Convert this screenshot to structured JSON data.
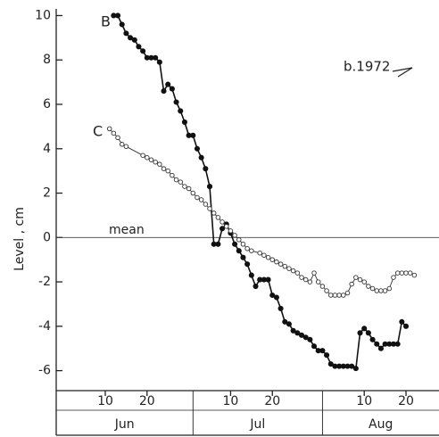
{
  "chart_data": {
    "type": "line",
    "ylabel": "Level , cm",
    "annotations": [
      "B",
      "C",
      "b.1972",
      "mean"
    ],
    "xlim": [
      -1.75,
      89.9
    ],
    "ylim": [
      -6.9,
      10.3
    ],
    "yticks": [
      -6,
      -4,
      -2,
      0,
      2,
      4,
      6,
      8,
      10
    ],
    "xticks": [
      {
        "value": 10,
        "label": "10"
      },
      {
        "value": 20,
        "label": "20"
      },
      {
        "value": 40,
        "label": "10"
      },
      {
        "value": 50,
        "label": "20"
      },
      {
        "value": 72,
        "label": "10"
      },
      {
        "value": 82,
        "label": "20"
      }
    ],
    "months": [
      "Jun",
      "Jul",
      "Aug"
    ],
    "month_bounds": [
      31,
      62
    ],
    "hline": 0,
    "series": [
      {
        "name": "B",
        "color": "#111111",
        "marker": "filled",
        "x": [
          12,
          13,
          14,
          15,
          16,
          17,
          18,
          19,
          20,
          21,
          22,
          23,
          24,
          25,
          26,
          27,
          28,
          29,
          30,
          31,
          32,
          33,
          34,
          35,
          36,
          37,
          38,
          39,
          40,
          41,
          42,
          43,
          44,
          45,
          46,
          47,
          48,
          49,
          50,
          51,
          52,
          53,
          54,
          55,
          56,
          57,
          58,
          59,
          60,
          61,
          62,
          63,
          64,
          65,
          66,
          67,
          68,
          69,
          70,
          71,
          72,
          73,
          74,
          75,
          76,
          77,
          78,
          79,
          80,
          81,
          82
        ],
        "values": [
          10.0,
          10.0,
          9.6,
          9.2,
          9.0,
          8.9,
          8.6,
          8.4,
          8.1,
          8.1,
          8.1,
          7.9,
          6.6,
          6.9,
          6.7,
          6.1,
          5.7,
          5.2,
          4.6,
          4.6,
          4.0,
          3.6,
          3.1,
          2.3,
          -0.3,
          -0.3,
          0.4,
          0.6,
          0.2,
          -0.3,
          -0.6,
          -0.9,
          -1.2,
          -1.7,
          -2.2,
          -1.9,
          -1.9,
          -1.9,
          -2.6,
          -2.7,
          -3.2,
          -3.8,
          -3.9,
          -4.2,
          -4.3,
          -4.4,
          -4.5,
          -4.6,
          -4.9,
          -5.1,
          -5.1,
          -5.3,
          -5.7,
          -5.8,
          -5.8,
          -5.8,
          -5.8,
          -5.8,
          -5.9,
          -4.3,
          -4.1,
          -4.3,
          -4.6,
          -4.8,
          -5.0,
          -4.8,
          -4.8,
          -4.8,
          -4.8,
          -3.8,
          -4.0
        ]
      },
      {
        "name": "C",
        "color": "#333333",
        "marker": "open",
        "x": [
          11,
          12,
          13,
          14,
          15,
          19,
          20,
          21,
          22,
          23,
          24,
          25,
          26,
          27,
          28,
          29,
          30,
          31,
          32,
          33,
          34,
          35,
          36,
          37,
          38,
          39,
          40,
          41,
          42,
          43,
          44,
          45,
          47,
          48,
          49,
          50,
          51,
          52,
          53,
          54,
          55,
          56,
          57,
          58,
          59,
          60,
          61,
          62,
          63,
          64,
          65,
          66,
          67,
          68,
          69,
          70,
          71,
          72,
          73,
          74,
          75,
          76,
          77,
          78,
          79,
          80,
          81,
          82,
          83,
          84
        ],
        "values": [
          4.9,
          4.7,
          4.5,
          4.2,
          4.1,
          3.7,
          3.6,
          3.5,
          3.4,
          3.3,
          3.1,
          3.0,
          2.8,
          2.6,
          2.5,
          2.3,
          2.2,
          2.0,
          1.8,
          1.7,
          1.5,
          1.3,
          1.1,
          0.9,
          0.7,
          0.5,
          0.3,
          0.1,
          -0.1,
          -0.3,
          -0.5,
          -0.6,
          -0.7,
          -0.8,
          -0.9,
          -1.0,
          -1.1,
          -1.2,
          -1.3,
          -1.4,
          -1.5,
          -1.6,
          -1.8,
          -1.9,
          -2.0,
          -1.6,
          -2.0,
          -2.2,
          -2.4,
          -2.6,
          -2.6,
          -2.6,
          -2.6,
          -2.5,
          -2.1,
          -1.8,
          -1.9,
          -2.0,
          -2.2,
          -2.3,
          -2.4,
          -2.4,
          -2.4,
          -2.3,
          -1.8,
          -1.6,
          -1.6,
          -1.6,
          -1.6,
          -1.7
        ]
      }
    ]
  }
}
